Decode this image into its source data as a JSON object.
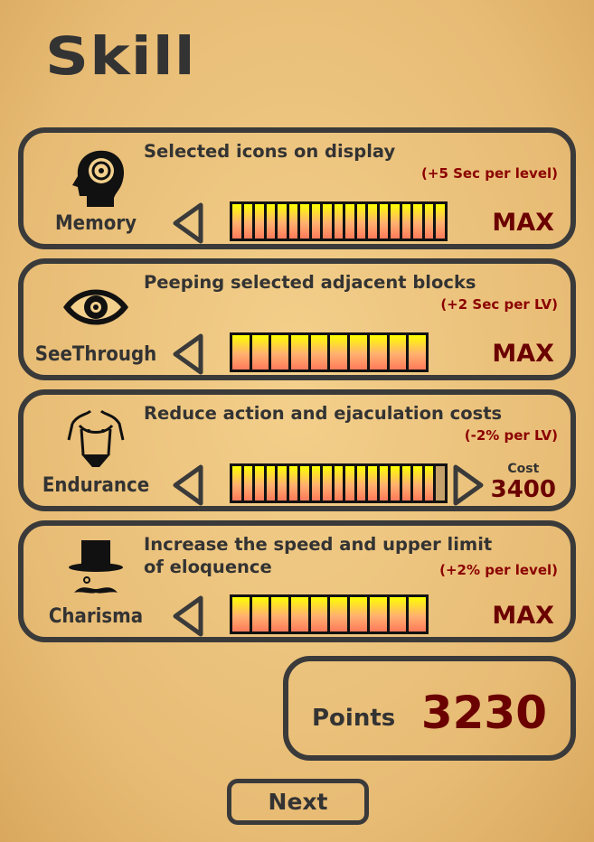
{
  "title": "Skill",
  "skills": [
    {
      "name": "Memory",
      "desc": "Selected icons on display",
      "note": "(+5 Sec per level)",
      "status": "MAX",
      "segments": 19,
      "filled": 19,
      "icon": "head-brain-icon"
    },
    {
      "name": "SeeThrough",
      "desc": "Peeping selected adjacent blocks",
      "note": "(+2 Sec per LV)",
      "status": "MAX",
      "segments": 10,
      "filled": 10,
      "icon": "eye-icon"
    },
    {
      "name": "Endurance",
      "desc": "Reduce action and ejaculation costs",
      "note": "(-2% per LV)",
      "cost_label": "Cost",
      "cost": "3400",
      "segments": 19,
      "filled": 18,
      "icon": "torso-icon"
    },
    {
      "name": "Charisma",
      "desc": "Increase the speed and upper limit of eloquence",
      "note": "(+2% per level)",
      "status": "MAX",
      "segments": 10,
      "filled": 10,
      "icon": "top-hat-mustache-icon"
    }
  ],
  "points": {
    "label": "Points",
    "value": "3230"
  },
  "next_label": "Next",
  "colors": {
    "accent": "#6b0000",
    "note": "#8b0000",
    "border": "#3a3a3a"
  }
}
